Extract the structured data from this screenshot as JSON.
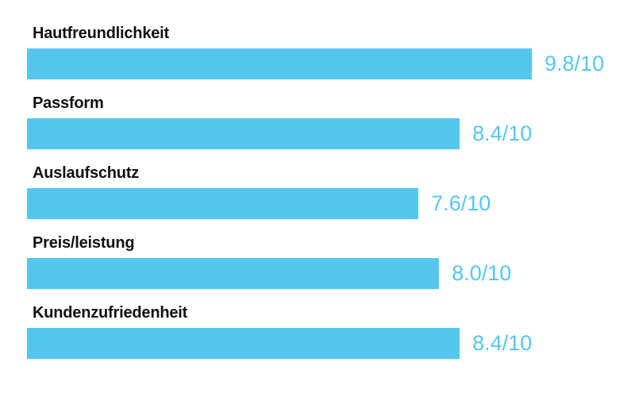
{
  "chart_data": {
    "type": "bar",
    "orientation": "horizontal",
    "title": "",
    "xlabel": "",
    "ylabel": "",
    "xlim": [
      0,
      10
    ],
    "grid": false,
    "legend": null,
    "categories": [
      "Hautfreundlichkeit",
      "Passform",
      "Auslaufschutz",
      "Preis/leistung",
      "Kundenzufriedenheit"
    ],
    "values": [
      9.8,
      8.4,
      7.6,
      8.0,
      8.4
    ],
    "value_labels": [
      "9.8/10",
      "8.4/10",
      "7.6/10",
      "8.0/10",
      "8.4/10"
    ],
    "max_value": 10,
    "bar_color": "#55C7EF",
    "value_text_color": "#55C7EF",
    "label_text_color": "#111111",
    "background_color": "#FFFFFF"
  }
}
